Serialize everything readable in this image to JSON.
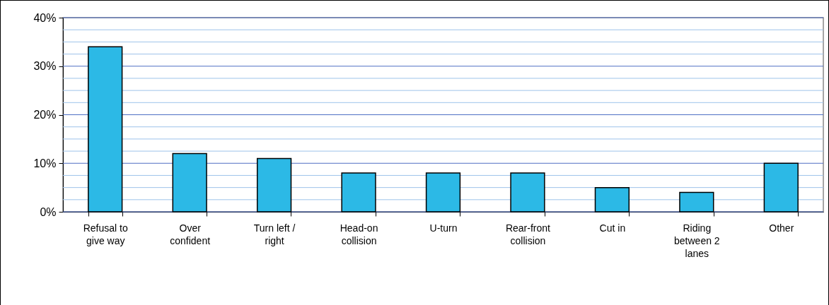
{
  "chart_data": {
    "type": "bar",
    "categories": [
      "Refusal to give way",
      "Over confident",
      "Turn left / right",
      "Head-on collision",
      "U-turn",
      "Rear-front collision",
      "Cut in",
      "Riding between 2 lanes",
      "Other"
    ],
    "values": [
      34,
      12,
      11,
      8,
      8,
      8,
      5,
      4,
      10
    ],
    "color": "#2cb9e6",
    "ylim": [
      0,
      40
    ],
    "yticks": [
      {
        "value": 0,
        "label": "0%"
      },
      {
        "value": 2.5,
        "label": null
      },
      {
        "value": 5,
        "label": null
      },
      {
        "value": 7.5,
        "label": null
      },
      {
        "value": 10,
        "label": "10%"
      },
      {
        "value": 12.5,
        "label": null
      },
      {
        "value": 15,
        "label": null
      },
      {
        "value": 17.5,
        "label": null
      },
      {
        "value": 20,
        "label": "20%"
      },
      {
        "value": 22.5,
        "label": null
      },
      {
        "value": 25,
        "label": null
      },
      {
        "value": 27.5,
        "label": null
      },
      {
        "value": 30,
        "label": "30%"
      },
      {
        "value": 32.5,
        "label": null
      },
      {
        "value": 35,
        "label": null
      },
      {
        "value": 37.5,
        "label": null
      },
      {
        "value": 40,
        "label": "40%"
      }
    ],
    "grid": true
  }
}
